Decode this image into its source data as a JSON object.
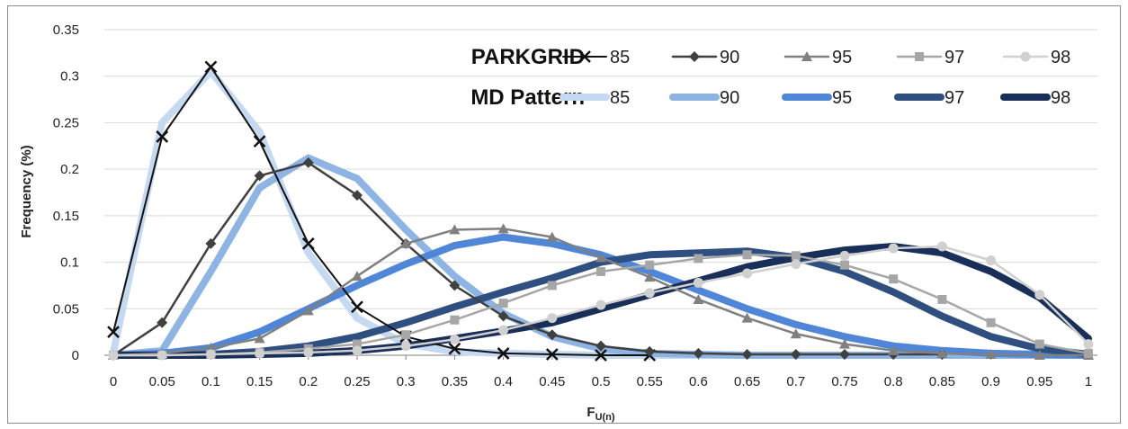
{
  "chart_data": {
    "type": "line",
    "xlabel": "F",
    "xlabel_sub": "U(n)",
    "ylabel": "Frequency (%)",
    "ylim": [
      0,
      0.35
    ],
    "y_ticks": [
      "0",
      "0.05",
      "0.1",
      "0.15",
      "0.2",
      "0.25",
      "0.3",
      "0.35"
    ],
    "x": [
      0,
      0.05,
      0.1,
      0.15,
      0.2,
      0.25,
      0.3,
      0.35,
      0.4,
      0.45,
      0.5,
      0.55,
      0.6,
      0.65,
      0.7,
      0.75,
      0.8,
      0.85,
      0.9,
      0.95,
      1
    ],
    "x_tick_labels": [
      "0",
      "0.05",
      "0.1",
      "0.15",
      "0.2",
      "0.25",
      "0.3",
      "0.35",
      "0.4",
      "0.45",
      "0.5",
      "0.55",
      "0.6",
      "0.65",
      "0.7",
      "0.75",
      "0.8",
      "0.85",
      "0.9",
      "0.95",
      "1"
    ],
    "grid": "horizontal",
    "legend_position": "top-right",
    "legend_groups": [
      {
        "title": "PARKGRID",
        "labels": [
          "85",
          "90",
          "95",
          "97",
          "98"
        ]
      },
      {
        "title": "MD Pattern",
        "labels": [
          "85",
          "90",
          "95",
          "97",
          "98"
        ]
      }
    ],
    "series": [
      {
        "group": "MD Pattern",
        "name": "85",
        "color": "#c5d9f1",
        "width": 8,
        "marker": "none",
        "values": [
          0.003,
          0.25,
          0.305,
          0.24,
          0.11,
          0.04,
          0.012,
          0.004,
          0.002,
          0.001,
          0,
          0,
          0,
          0,
          0,
          0,
          0,
          0,
          0,
          0,
          0
        ]
      },
      {
        "group": "MD Pattern",
        "name": "90",
        "color": "#8db4e2",
        "width": 8,
        "marker": "none",
        "values": [
          0,
          0.005,
          0.09,
          0.18,
          0.212,
          0.19,
          0.135,
          0.085,
          0.045,
          0.02,
          0.007,
          0.002,
          0.001,
          0,
          0,
          0,
          0,
          0,
          0,
          0,
          0
        ]
      },
      {
        "group": "MD Pattern",
        "name": "95",
        "color": "#4f86d8",
        "width": 8,
        "marker": "none",
        "values": [
          0,
          0.002,
          0.008,
          0.025,
          0.05,
          0.075,
          0.098,
          0.118,
          0.127,
          0.12,
          0.108,
          0.09,
          0.07,
          0.05,
          0.033,
          0.02,
          0.01,
          0.005,
          0.002,
          0.001,
          0
        ]
      },
      {
        "group": "MD Pattern",
        "name": "97",
        "color": "#2f4f80",
        "width": 8,
        "marker": "none",
        "values": [
          0,
          0,
          0.001,
          0.004,
          0.01,
          0.02,
          0.035,
          0.052,
          0.068,
          0.083,
          0.1,
          0.108,
          0.11,
          0.112,
          0.105,
          0.09,
          0.068,
          0.042,
          0.02,
          0.007,
          0.001
        ]
      },
      {
        "group": "MD Pattern",
        "name": "98",
        "color": "#1a2e5a",
        "width": 8,
        "marker": "none",
        "values": [
          0,
          0,
          0,
          0.001,
          0.002,
          0.005,
          0.01,
          0.018,
          0.026,
          0.035,
          0.05,
          0.065,
          0.08,
          0.095,
          0.105,
          0.113,
          0.117,
          0.11,
          0.09,
          0.062,
          0.018
        ]
      },
      {
        "group": "PARKGRID",
        "name": "85",
        "color": "#111111",
        "width": 2,
        "marker": "x",
        "values": [
          0.025,
          0.235,
          0.31,
          0.23,
          0.12,
          0.052,
          0.02,
          0.007,
          0.002,
          0.001,
          0,
          0,
          null,
          null,
          null,
          null,
          null,
          null,
          null,
          null,
          null
        ]
      },
      {
        "group": "PARKGRID",
        "name": "90",
        "color": "#404040",
        "width": 2.5,
        "marker": "diamond",
        "values": [
          0,
          0.035,
          0.12,
          0.193,
          0.207,
          0.172,
          0.12,
          0.075,
          0.042,
          0.022,
          0.01,
          0.004,
          0.002,
          0.001,
          0.001,
          0.001,
          0.001,
          0.001,
          null,
          null,
          null
        ]
      },
      {
        "group": "PARKGRID",
        "name": "95",
        "color": "#808080",
        "width": 2.5,
        "marker": "triangle",
        "values": [
          0,
          0.002,
          0.008,
          0.018,
          0.048,
          0.085,
          0.12,
          0.135,
          0.136,
          0.127,
          0.105,
          0.084,
          0.06,
          0.04,
          0.023,
          0.012,
          0.005,
          0.002,
          0.001,
          0,
          0
        ]
      },
      {
        "group": "PARKGRID",
        "name": "97",
        "color": "#a6a6a6",
        "width": 2.5,
        "marker": "square",
        "values": [
          0,
          0,
          0.001,
          0.003,
          0.007,
          0.012,
          0.022,
          0.038,
          0.056,
          0.075,
          0.09,
          0.097,
          0.104,
          0.108,
          0.107,
          0.097,
          0.082,
          0.06,
          0.035,
          0.012,
          0.002
        ]
      },
      {
        "group": "PARKGRID",
        "name": "98",
        "color": "#d0d0d0",
        "width": 2.5,
        "marker": "circle",
        "values": [
          0,
          0,
          0.001,
          0.002,
          0.003,
          0.005,
          0.01,
          0.017,
          0.027,
          0.04,
          0.054,
          0.067,
          0.078,
          0.088,
          0.098,
          0.107,
          0.115,
          0.117,
          0.102,
          0.065,
          0.012
        ]
      }
    ]
  }
}
